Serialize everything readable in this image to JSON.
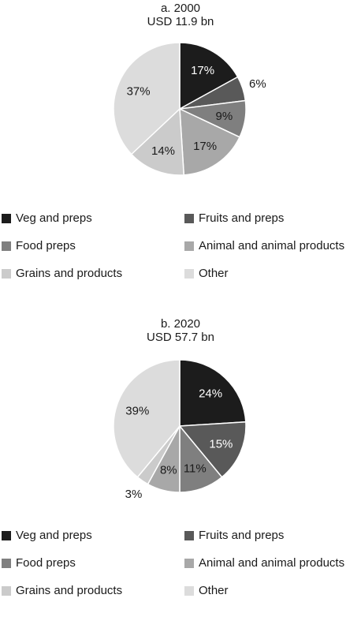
{
  "colors": {
    "veg": "#1c1c1c",
    "fruits": "#595959",
    "food": "#7f7f7f",
    "animal": "#a8a8a8",
    "grains": "#cbcbcb",
    "other": "#dcdcdc"
  },
  "chart_data": [
    {
      "type": "pie",
      "title": "a. 2000",
      "subtitle": "USD 11.9 bn",
      "labels": [
        "Veg and preps",
        "Fruits and preps",
        "Food preps",
        "Animal and animal products",
        "Grains and products",
        "Other"
      ],
      "values": [
        17,
        6,
        9,
        17,
        14,
        37
      ],
      "value_labels": [
        "17%",
        "6%",
        "9%",
        "17%",
        "14%",
        "37%"
      ],
      "legend_position": "bottom"
    },
    {
      "type": "pie",
      "title": "b. 2020",
      "subtitle": "USD 57.7 bn",
      "labels": [
        "Veg and preps",
        "Fruits and preps",
        "Food preps",
        "Animal and animal products",
        "Grains and products",
        "Other"
      ],
      "values": [
        24,
        15,
        11,
        8,
        3,
        39
      ],
      "value_labels": [
        "24%",
        "15%",
        "11%",
        "8%",
        "3%",
        "39%"
      ],
      "legend_position": "bottom"
    }
  ]
}
